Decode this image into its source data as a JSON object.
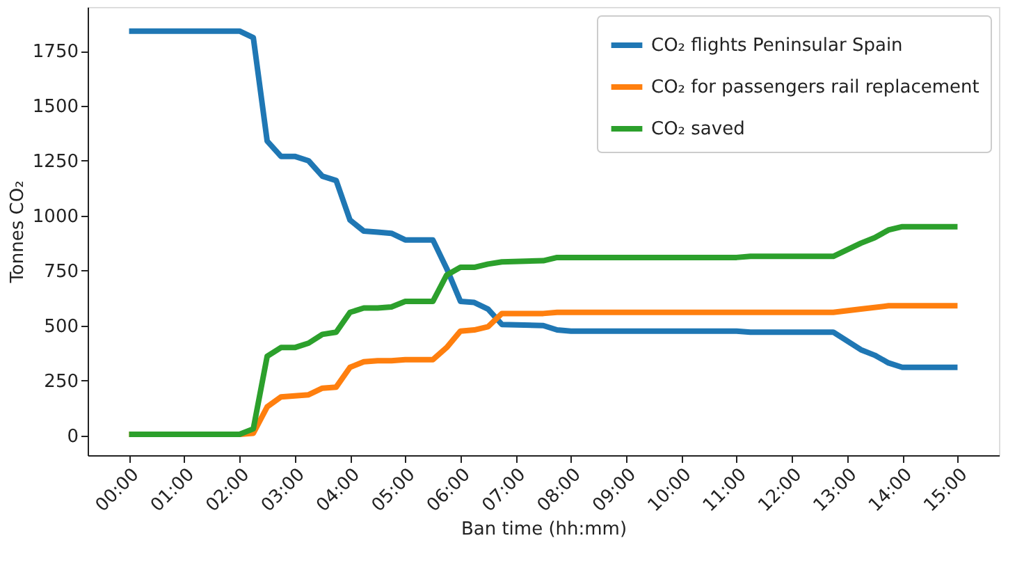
{
  "chart_data": {
    "type": "line",
    "xlabel": "Ban time (hh:mm)",
    "ylabel": "Tonnes CO₂",
    "xlim": [
      -0.75,
      15.75
    ],
    "ylim": [
      -90,
      1950
    ],
    "xticks": [
      {
        "value": 0,
        "label": "00:00"
      },
      {
        "value": 1,
        "label": "01:00"
      },
      {
        "value": 2,
        "label": "02:00"
      },
      {
        "value": 3,
        "label": "03:00"
      },
      {
        "value": 4,
        "label": "04:00"
      },
      {
        "value": 5,
        "label": "05:00"
      },
      {
        "value": 6,
        "label": "06:00"
      },
      {
        "value": 7,
        "label": "07:00"
      },
      {
        "value": 8,
        "label": "08:00"
      },
      {
        "value": 9,
        "label": "09:00"
      },
      {
        "value": 10,
        "label": "10:00"
      },
      {
        "value": 11,
        "label": "11:00"
      },
      {
        "value": 12,
        "label": "12:00"
      },
      {
        "value": 13,
        "label": "13:00"
      },
      {
        "value": 14,
        "label": "14:00"
      },
      {
        "value": 15,
        "label": "15:00"
      }
    ],
    "yticks": [
      0,
      250,
      500,
      750,
      1000,
      1250,
      1500,
      1750
    ],
    "grid": false,
    "legend": "top right",
    "marker": "none",
    "line_style": "solid",
    "series": [
      {
        "name": "CO₂ flights Peninsular Spain",
        "color": "#1f77b4",
        "x": [
          0,
          2,
          2.25,
          2.5,
          2.75,
          3,
          3.25,
          3.5,
          3.75,
          4,
          4.25,
          4.5,
          4.75,
          5,
          5.5,
          5.75,
          6,
          6.25,
          6.5,
          6.75,
          7.5,
          7.75,
          8,
          11,
          11.25,
          12.75,
          13.25,
          13.5,
          13.75,
          14,
          15
        ],
        "values": [
          1840,
          1840,
          1810,
          1340,
          1270,
          1270,
          1250,
          1180,
          1160,
          980,
          930,
          925,
          920,
          890,
          890,
          760,
          610,
          605,
          575,
          505,
          500,
          480,
          475,
          475,
          470,
          470,
          390,
          365,
          330,
          310,
          310
        ]
      },
      {
        "name": "CO₂ for passengers rail replacement",
        "color": "#ff7f0e",
        "x": [
          0,
          2,
          2.25,
          2.5,
          2.75,
          3,
          3.25,
          3.5,
          3.75,
          4,
          4.25,
          4.5,
          4.75,
          5,
          5.5,
          5.75,
          6,
          6.25,
          6.5,
          6.75,
          7.5,
          7.75,
          11,
          12.75,
          13.25,
          13.75,
          15
        ],
        "values": [
          5,
          5,
          10,
          130,
          175,
          180,
          185,
          215,
          220,
          310,
          335,
          340,
          340,
          345,
          345,
          400,
          475,
          480,
          495,
          555,
          555,
          560,
          560,
          560,
          575,
          590,
          590
        ]
      },
      {
        "name": "CO₂ saved",
        "color": "#2ca02c",
        "x": [
          0,
          2,
          2.25,
          2.5,
          2.75,
          3,
          3.25,
          3.5,
          3.75,
          4,
          4.25,
          4.5,
          4.75,
          5,
          5.5,
          5.75,
          6,
          6.25,
          6.5,
          6.75,
          7.5,
          7.75,
          11,
          11.25,
          12.75,
          13.25,
          13.5,
          13.75,
          14,
          15
        ],
        "values": [
          5,
          5,
          30,
          360,
          400,
          400,
          420,
          460,
          470,
          560,
          580,
          580,
          585,
          610,
          610,
          730,
          765,
          765,
          780,
          790,
          795,
          810,
          810,
          815,
          815,
          875,
          900,
          935,
          950,
          950
        ]
      }
    ]
  }
}
